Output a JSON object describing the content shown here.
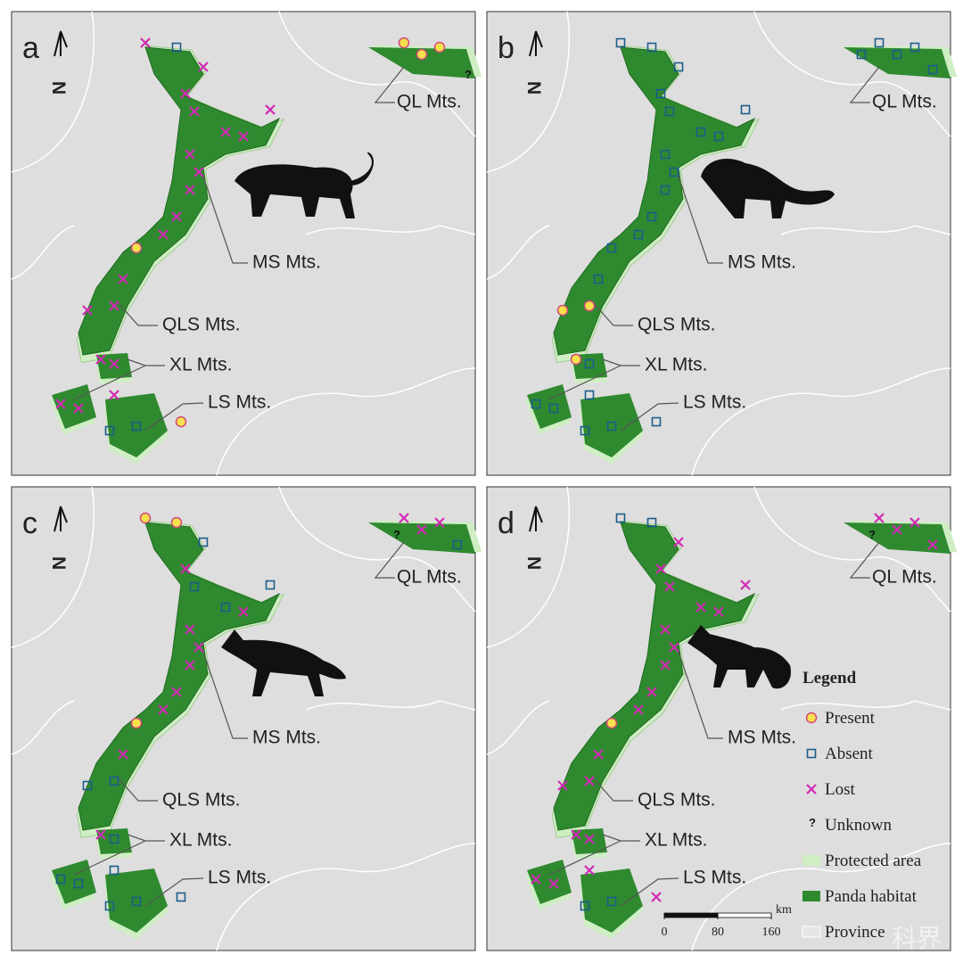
{
  "panels": [
    {
      "letter": "a",
      "labels": [
        "QL Mts.",
        "MS Mts.",
        "QLS Mts.",
        "XL Mts.",
        "LS Mts."
      ]
    },
    {
      "letter": "b",
      "labels": [
        "QL Mts.",
        "MS Mts.",
        "QLS Mts.",
        "XL Mts.",
        "LS Mts."
      ]
    },
    {
      "letter": "c",
      "labels": [
        "QL Mts.",
        "MS Mts.",
        "QLS Mts.",
        "XL Mts.",
        "LS Mts."
      ]
    },
    {
      "letter": "d",
      "labels": [
        "QL Mts.",
        "MS Mts.",
        "QLS Mts.",
        "XL Mts.",
        "LS Mts."
      ]
    }
  ],
  "north": "N",
  "unknown_symbol": "?",
  "legend": {
    "title": "Legend",
    "items": [
      "Present",
      "Absent",
      "Lost",
      "Unknown",
      "Protected area",
      "Panda habitat",
      "Province"
    ]
  },
  "scale": {
    "unit": "km",
    "ticks": [
      0,
      80,
      160
    ]
  },
  "watermark": "科界"
}
